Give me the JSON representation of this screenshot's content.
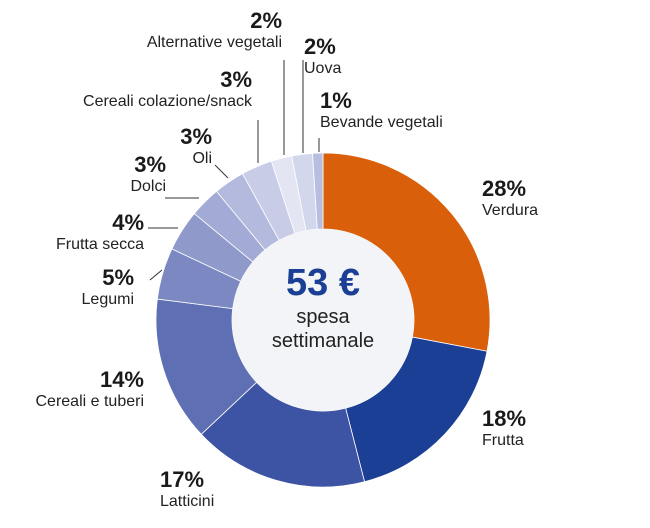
{
  "chart_data": {
    "type": "pie",
    "donut": true,
    "center_amount": "53 €",
    "center_label_1": "spesa",
    "center_label_2": "settimanale",
    "slices": [
      {
        "label": "Verdura",
        "value": 28,
        "pct": "28%",
        "color": "#d95f0a"
      },
      {
        "label": "Frutta",
        "value": 18,
        "pct": "18%",
        "color": "#1b3f95"
      },
      {
        "label": "Latticini",
        "value": 17,
        "pct": "17%",
        "color": "#3d53a3"
      },
      {
        "label": "Cereali e tuberi",
        "value": 14,
        "pct": "14%",
        "color": "#5e6fb3"
      },
      {
        "label": "Legumi",
        "value": 5,
        "pct": "5%",
        "color": "#7b88c2"
      },
      {
        "label": "Frutta secca",
        "value": 4,
        "pct": "4%",
        "color": "#8f9acb"
      },
      {
        "label": "Dolci",
        "value": 3,
        "pct": "3%",
        "color": "#a2aad5"
      },
      {
        "label": "Oli",
        "value": 3,
        "pct": "3%",
        "color": "#b3badd"
      },
      {
        "label": "Cereali colazione/snack",
        "value": 3,
        "pct": "3%",
        "color": "#c8cce7"
      },
      {
        "label": "Alternative vegetali",
        "value": 2,
        "pct": "2%",
        "color": "#e3e5f3"
      },
      {
        "label": "Uova",
        "value": 2,
        "pct": "2%",
        "color": "#d3d7ec"
      },
      {
        "label": "Bevande vegetali",
        "value": 1,
        "pct": "1%",
        "color": "#b7bee0"
      }
    ]
  }
}
